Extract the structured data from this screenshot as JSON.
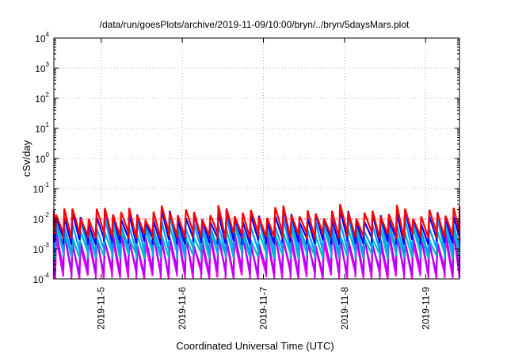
{
  "chart_data": {
    "type": "line",
    "title": "/data/run/goesPlots/archive/2019-11-09/10:00/bryn/../bryn/5daysMars.plot",
    "xlabel": "Coordinated Universal Time (UTC)",
    "ylabel": "cSv/day",
    "yscale": "log",
    "ylim": [
      0.0001,
      10000
    ],
    "xlim": [
      "2019-11-04 10:00",
      "2019-11-09 10:00"
    ],
    "x_tick_labels": [
      "2019-11-5",
      "2019-11-6",
      "2019-11-7",
      "2019-11-8",
      "2019-11-9"
    ],
    "x_tick_dates": [
      "2019-11-05",
      "2019-11-06",
      "2019-11-07",
      "2019-11-08",
      "2019-11-09"
    ],
    "y_ticks": [
      {
        "base": "10",
        "exp": "-4",
        "value": 0.0001
      },
      {
        "base": "10",
        "exp": "-3",
        "value": 0.001
      },
      {
        "base": "10",
        "exp": "-2",
        "value": 0.01
      },
      {
        "base": "10",
        "exp": "-1",
        "value": 0.1
      },
      {
        "base": "10",
        "exp": "0",
        "value": 1
      },
      {
        "base": "10",
        "exp": "1",
        "value": 10
      },
      {
        "base": "10",
        "exp": "2",
        "value": 100
      },
      {
        "base": "10",
        "exp": "3",
        "value": 1000
      },
      {
        "base": "10",
        "exp": "4",
        "value": 10000
      }
    ],
    "grid": true,
    "reference_line": {
      "value": 0.01,
      "color": "#ff0000",
      "style": "dotted"
    },
    "pattern": {
      "first_cycle_start": "2019-11-04 10:24",
      "cycle_hours": 2.4,
      "cycles": 50,
      "note": "sawtooth: sharp rise then decay every cycle"
    },
    "series": [
      {
        "color": "#ff0000",
        "peak": 0.016,
        "trough": 0.0028
      },
      {
        "color": "#0000ff",
        "peak": 0.012,
        "trough": 0.0018
      },
      {
        "color": "#00a0ff",
        "peak": 0.007,
        "trough": 0.0009
      },
      {
        "color": "#00bfbf",
        "peak": 0.0035,
        "trough": 0.0006
      },
      {
        "color": "#b000ff",
        "peak": 0.0022,
        "trough": 0.00017
      },
      {
        "color": "#ff00ff",
        "peak": 0.002,
        "trough": 0.00012
      }
    ]
  }
}
